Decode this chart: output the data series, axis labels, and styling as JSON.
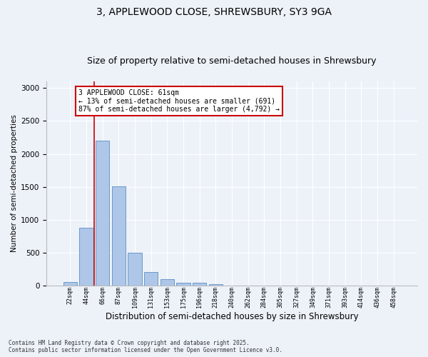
{
  "title": "3, APPLEWOOD CLOSE, SHREWSBURY, SY3 9GA",
  "subtitle": "Size of property relative to semi-detached houses in Shrewsbury",
  "xlabel": "Distribution of semi-detached houses by size in Shrewsbury",
  "ylabel": "Number of semi-detached properties",
  "footer_line1": "Contains HM Land Registry data © Crown copyright and database right 2025.",
  "footer_line2": "Contains public sector information licensed under the Open Government Licence v3.0.",
  "bar_labels": [
    "22sqm",
    "44sqm",
    "66sqm",
    "87sqm",
    "109sqm",
    "131sqm",
    "153sqm",
    "175sqm",
    "196sqm",
    "218sqm",
    "240sqm",
    "262sqm",
    "284sqm",
    "305sqm",
    "327sqm",
    "349sqm",
    "371sqm",
    "393sqm",
    "414sqm",
    "436sqm",
    "458sqm"
  ],
  "bar_values": [
    50,
    880,
    2200,
    1510,
    500,
    210,
    100,
    45,
    40,
    20,
    5,
    0,
    0,
    0,
    0,
    0,
    0,
    0,
    0,
    0,
    0
  ],
  "bar_color": "#aec6e8",
  "bar_edge_color": "#5a8fc2",
  "property_size": 61,
  "pct_smaller": 13,
  "pct_larger": 87,
  "count_smaller": 691,
  "count_larger": 4792,
  "annotation_box_color": "#cc0000",
  "red_line_x": 1.5,
  "ylim": [
    0,
    3100
  ],
  "yticks": [
    0,
    500,
    1000,
    1500,
    2000,
    2500,
    3000
  ],
  "background_color": "#edf2f9",
  "grid_color": "#ffffff",
  "title_fontsize": 10,
  "subtitle_fontsize": 9,
  "annotation_fontsize": 7,
  "ylabel_fontsize": 7.5,
  "xlabel_fontsize": 8.5,
  "tick_fontsize": 6,
  "ytick_fontsize": 7.5,
  "footer_fontsize": 5.5
}
